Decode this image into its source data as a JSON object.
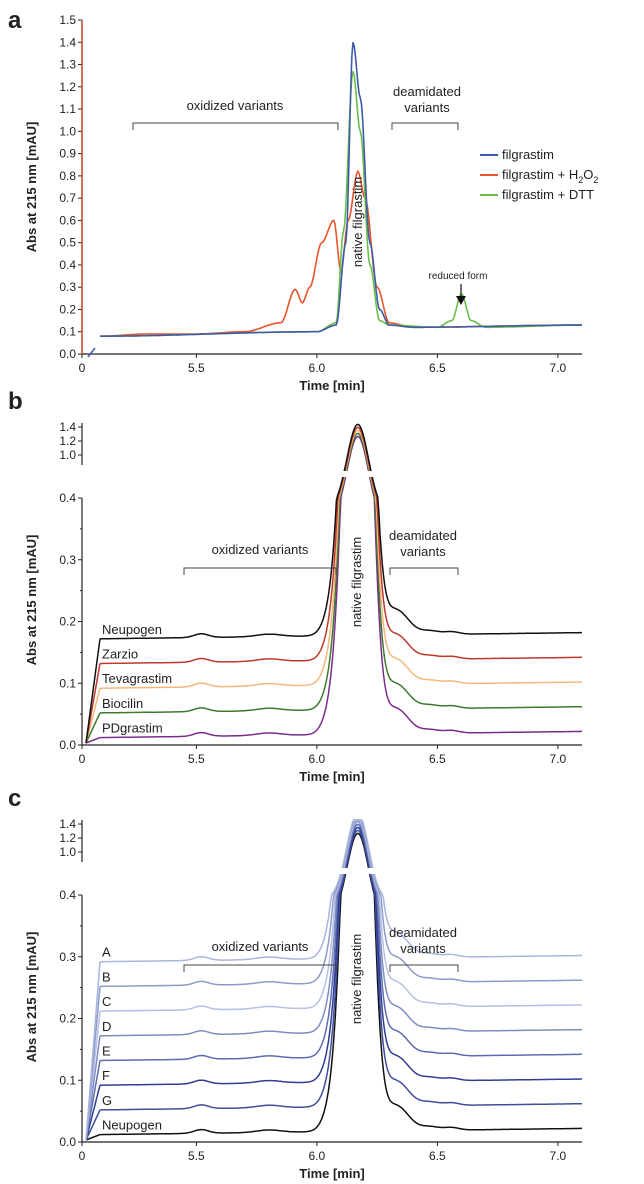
{
  "colors": {
    "filgrastim": "#3f5ba8",
    "h2o2": "#e8552a",
    "dtt": "#6abf4b",
    "neupogen": "#111111",
    "zarzio": "#c0392b",
    "tevagrastim": "#f5b77a",
    "biocilin": "#3d7a2e",
    "pdgrastim": "#7b2d8e",
    "blue_shades": [
      "#aab6dc",
      "#8d9bcb",
      "#b7bfe3",
      "#7e8cc4",
      "#5c6cb3",
      "#2e3f95",
      "#3f4d9e",
      "#111111"
    ]
  },
  "chart_data": [
    {
      "type": "line",
      "panel_label": "a",
      "xlabel": "Time [min]",
      "ylabel": "Abs at 215 nm [mAU]",
      "xlim": [
        5.1,
        7.1
      ],
      "ylim": [
        0,
        1.5
      ],
      "x_ticks": [
        "0",
        "5.5",
        "6.0",
        "6.5",
        "7.0"
      ],
      "y_ticks": [
        "0.0",
        "0.1",
        "0.2",
        "0.3",
        "0.4",
        "0.5",
        "0.6",
        "0.7",
        "0.8",
        "0.9",
        "1.0",
        "1.1",
        "1.2",
        "1.3",
        "1.4",
        "1.5"
      ],
      "legend_position": "top-right",
      "legend": [
        {
          "name": "filgrastim",
          "sub": ""
        },
        {
          "name": "filgrastim + H",
          "sub": "2",
          "name2": "O",
          "sub2": "2"
        },
        {
          "name": "filgrastim + DTT",
          "sub": ""
        }
      ],
      "annotations": {
        "oxidized": "oxidized variants",
        "deamidated_1": "deamidated",
        "deamidated_2": "variants",
        "native": "native filgrastim",
        "reduced": "reduced form"
      },
      "series": [
        {
          "name": "filgrastim",
          "x": [
            5.1,
            6.0,
            6.08,
            6.12,
            6.15,
            6.18,
            6.22,
            6.26,
            6.3,
            6.4,
            7.1
          ],
          "y": [
            0.08,
            0.1,
            0.13,
            0.5,
            1.4,
            1.15,
            0.5,
            0.2,
            0.13,
            0.12,
            0.13
          ]
        },
        {
          "name": "filgrastim + H2O2",
          "x": [
            5.1,
            5.3,
            5.5,
            5.7,
            5.85,
            5.91,
            5.94,
            5.97,
            6.02,
            6.07,
            6.1,
            6.13,
            6.17,
            6.2,
            6.25,
            6.3,
            6.4,
            7.1
          ],
          "y": [
            0.08,
            0.09,
            0.09,
            0.1,
            0.14,
            0.29,
            0.23,
            0.3,
            0.5,
            0.6,
            0.37,
            0.6,
            0.82,
            0.7,
            0.3,
            0.14,
            0.12,
            0.13
          ]
        },
        {
          "name": "filgrastim + DTT",
          "x": [
            5.1,
            6.0,
            6.08,
            6.11,
            6.15,
            6.18,
            6.22,
            6.26,
            6.3,
            6.5,
            6.56,
            6.6,
            6.64,
            6.7,
            7.1
          ],
          "y": [
            0.08,
            0.1,
            0.14,
            0.55,
            1.27,
            1.0,
            0.4,
            0.15,
            0.13,
            0.12,
            0.15,
            0.27,
            0.15,
            0.12,
            0.13
          ]
        }
      ]
    },
    {
      "type": "line",
      "panel_label": "b",
      "xlabel": "Time [min]",
      "ylabel": "Abs at 215 nm [mAU]",
      "xlim": [
        5.1,
        7.1
      ],
      "ylim": [
        0,
        0.4
      ],
      "y_break_upper_ticks": [
        "1.4",
        "1.2",
        "1.0"
      ],
      "x_ticks": [
        "0",
        "5.5",
        "6.0",
        "6.5",
        "7.0"
      ],
      "y_ticks": [
        "0.0",
        "0.1",
        "0.2",
        "0.3",
        "0.4"
      ],
      "annotations": {
        "oxidized": "oxidized variants",
        "deamidated_1": "deamidated",
        "deamidated_2": "variants",
        "native": "native filgrastim"
      },
      "series": [
        {
          "name": "Neupogen",
          "offset": 0.16
        },
        {
          "name": "Zarzio",
          "offset": 0.12
        },
        {
          "name": "Tevagrastim",
          "offset": 0.08
        },
        {
          "name": "Biocilin",
          "offset": 0.04
        },
        {
          "name": "PDgrastim",
          "offset": 0.0
        }
      ]
    },
    {
      "type": "line",
      "panel_label": "c",
      "xlabel": "Time [min]",
      "ylabel": "Abs at 215 nm [mAU]",
      "xlim": [
        5.1,
        7.1
      ],
      "ylim": [
        0,
        0.4
      ],
      "y_break_upper_ticks": [
        "1.4",
        "1.2",
        "1.0"
      ],
      "x_ticks": [
        "0",
        "5.5",
        "6.0",
        "6.5",
        "7.0"
      ],
      "y_ticks": [
        "0.0",
        "0.1",
        "0.2",
        "0.3",
        "0.4"
      ],
      "annotations": {
        "oxidized": "oxidized variants",
        "deamidated_1": "deamidated",
        "deamidated_2": "variants",
        "native": "native filgrastim"
      },
      "series": [
        {
          "name": "A",
          "offset": 0.28
        },
        {
          "name": "B",
          "offset": 0.24
        },
        {
          "name": "C",
          "offset": 0.2
        },
        {
          "name": "D",
          "offset": 0.16
        },
        {
          "name": "E",
          "offset": 0.12
        },
        {
          "name": "F",
          "offset": 0.08
        },
        {
          "name": "G",
          "offset": 0.04
        },
        {
          "name": "Neupogen",
          "offset": 0.0
        }
      ]
    }
  ]
}
